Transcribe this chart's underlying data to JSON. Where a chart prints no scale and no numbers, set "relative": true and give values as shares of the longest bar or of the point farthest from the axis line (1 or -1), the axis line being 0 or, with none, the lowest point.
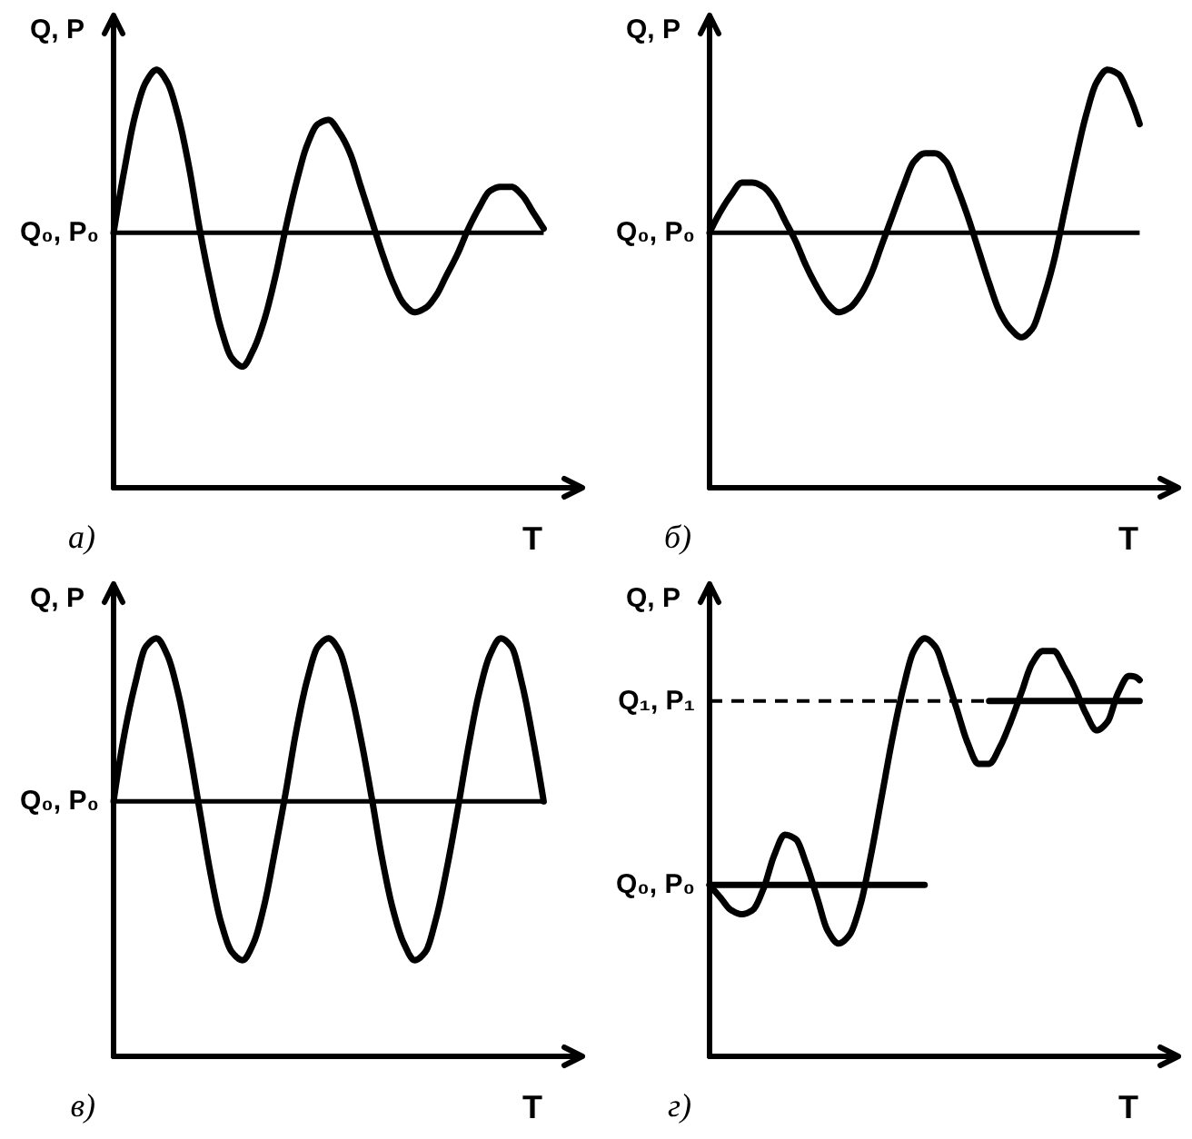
{
  "chart_data": [
    {
      "type": "line",
      "title": "а)",
      "xlabel": "T",
      "ylabel": "Q, P",
      "relative": true,
      "categories": [
        null,
        null,
        null,
        null,
        null,
        null,
        null,
        null,
        null,
        null,
        null,
        null,
        null,
        null,
        null,
        null,
        null,
        null,
        null,
        null,
        null,
        null,
        null,
        null,
        null,
        null,
        null,
        null,
        null,
        null,
        null,
        null,
        null,
        null,
        null,
        null,
        null,
        null,
        null,
        null,
        null
      ],
      "series": [
        {
          "color": "#000000",
          "values": [
            0.61,
            0.76,
            0.89,
            0.97,
            1.0,
            0.97,
            0.89,
            0.77,
            0.62,
            0.49,
            0.38,
            0.31,
            0.29,
            0.33,
            0.4,
            0.5,
            0.62,
            0.73,
            0.82,
            0.87,
            0.88,
            0.85,
            0.8,
            0.72,
            0.64,
            0.56,
            0.49,
            0.44,
            0.42,
            0.43,
            0.46,
            0.51,
            0.56,
            0.62,
            0.67,
            0.71,
            0.72,
            0.72,
            0.7,
            0.66,
            0.62
          ]
        }
      ],
      "ref_lines": [
        {
          "axis": "y",
          "value": 0.61,
          "label": "Q₀, P₀",
          "color": "#000000"
        }
      ]
    },
    {
      "type": "line",
      "title": "б)",
      "xlabel": "T",
      "ylabel": "Q, P",
      "relative": true,
      "categories": [
        null,
        null,
        null,
        null,
        null,
        null,
        null,
        null,
        null,
        null,
        null,
        null,
        null,
        null,
        null,
        null,
        null,
        null,
        null,
        null,
        null,
        null,
        null,
        null,
        null,
        null,
        null,
        null,
        null,
        null,
        null,
        null,
        null,
        null,
        null,
        null,
        null,
        null,
        null,
        null,
        null
      ],
      "series": [
        {
          "color": "#000000",
          "values": [
            0.61,
            0.66,
            0.7,
            0.73,
            0.73,
            0.72,
            0.69,
            0.64,
            0.59,
            0.53,
            0.48,
            0.44,
            0.42,
            0.43,
            0.46,
            0.51,
            0.58,
            0.65,
            0.72,
            0.78,
            0.8,
            0.8,
            0.78,
            0.72,
            0.65,
            0.57,
            0.49,
            0.42,
            0.38,
            0.36,
            0.38,
            0.45,
            0.54,
            0.66,
            0.78,
            0.89,
            0.97,
            1.0,
            0.99,
            0.94,
            0.87
          ]
        }
      ],
      "ref_lines": [
        {
          "axis": "y",
          "value": 0.61,
          "label": "Q₀, P₀",
          "color": "#000000"
        }
      ]
    },
    {
      "type": "line",
      "title": "в)",
      "xlabel": "T",
      "ylabel": "Q, P",
      "relative": true,
      "categories": [
        null,
        null,
        null,
        null,
        null,
        null,
        null,
        null,
        null,
        null,
        null,
        null,
        null,
        null,
        null,
        null,
        null,
        null,
        null,
        null,
        null,
        null,
        null,
        null,
        null,
        null,
        null,
        null,
        null,
        null,
        null,
        null,
        null,
        null,
        null,
        null,
        null,
        null,
        null,
        null,
        null
      ],
      "series": [
        {
          "color": "#000000",
          "values": [
            0.61,
            0.77,
            0.89,
            0.98,
            1.0,
            0.96,
            0.87,
            0.74,
            0.59,
            0.44,
            0.32,
            0.25,
            0.23,
            0.27,
            0.36,
            0.49,
            0.63,
            0.78,
            0.9,
            0.98,
            1.0,
            0.97,
            0.88,
            0.76,
            0.62,
            0.47,
            0.35,
            0.27,
            0.23,
            0.25,
            0.33,
            0.45,
            0.59,
            0.74,
            0.87,
            0.96,
            1.0,
            0.98,
            0.89,
            0.76,
            0.61
          ]
        }
      ],
      "ref_lines": [
        {
          "axis": "y",
          "value": 0.61,
          "label": "Q₀, P₀",
          "color": "#000000"
        }
      ]
    },
    {
      "type": "line",
      "title": "г)",
      "xlabel": "T",
      "ylabel": "Q, P",
      "relative": true,
      "categories": [
        null,
        null,
        null,
        null,
        null,
        null,
        null,
        null,
        null,
        null,
        null,
        null,
        null,
        null,
        null,
        null,
        null,
        null,
        null,
        null,
        null,
        null,
        null,
        null,
        null,
        null,
        null,
        null,
        null,
        null,
        null,
        null,
        null,
        null,
        null,
        null,
        null,
        null,
        null,
        null,
        null
      ],
      "series": [
        {
          "color": "#000000",
          "values": [
            0.41,
            0.38,
            0.35,
            0.34,
            0.35,
            0.4,
            0.48,
            0.53,
            0.52,
            0.46,
            0.38,
            0.3,
            0.27,
            0.29,
            0.36,
            0.48,
            0.62,
            0.76,
            0.88,
            0.97,
            1.0,
            0.98,
            0.91,
            0.83,
            0.75,
            0.7,
            0.7,
            0.74,
            0.8,
            0.87,
            0.94,
            0.97,
            0.97,
            0.93,
            0.88,
            0.82,
            0.78,
            0.8,
            0.87,
            0.91,
            0.9
          ]
        },
        {
          "name": "Q₀, P₀",
          "color": "#000000",
          "values": [
            0.41,
            0.41,
            0.41,
            0.41,
            0.41,
            0.41,
            0.41,
            0.41,
            0.41,
            0.41,
            0.41,
            0.41,
            0.41,
            0.41,
            0.41,
            0.41,
            0.41,
            0.41,
            0.41,
            0.41,
            0.41,
            null,
            null,
            null,
            null,
            null,
            null,
            null,
            null,
            null,
            null,
            null,
            null,
            null,
            null,
            null,
            null,
            null,
            null,
            null,
            null
          ]
        },
        {
          "name": "Q₁, P₁",
          "color": "#000000",
          "line_style": "dashed",
          "values": [
            0.85,
            0.85,
            0.85,
            0.85,
            0.85,
            0.85,
            0.85,
            0.85,
            0.85,
            0.85,
            0.85,
            0.85,
            0.85,
            0.85,
            0.85,
            0.85,
            0.85,
            0.85,
            0.85,
            0.85,
            0.85,
            0.85,
            0.85,
            0.85,
            0.85,
            0.85,
            0.85,
            null,
            null,
            null,
            null,
            null,
            null,
            null,
            null,
            null,
            null,
            null,
            null,
            null,
            null
          ]
        },
        {
          "color": "#000000",
          "values": [
            null,
            null,
            null,
            null,
            null,
            null,
            null,
            null,
            null,
            null,
            null,
            null,
            null,
            null,
            null,
            null,
            null,
            null,
            null,
            null,
            null,
            null,
            null,
            null,
            null,
            null,
            0.85,
            0.85,
            0.85,
            0.85,
            0.85,
            0.85,
            0.85,
            0.85,
            0.85,
            0.85,
            0.85,
            0.85,
            0.85,
            0.85,
            0.85
          ]
        }
      ]
    }
  ]
}
